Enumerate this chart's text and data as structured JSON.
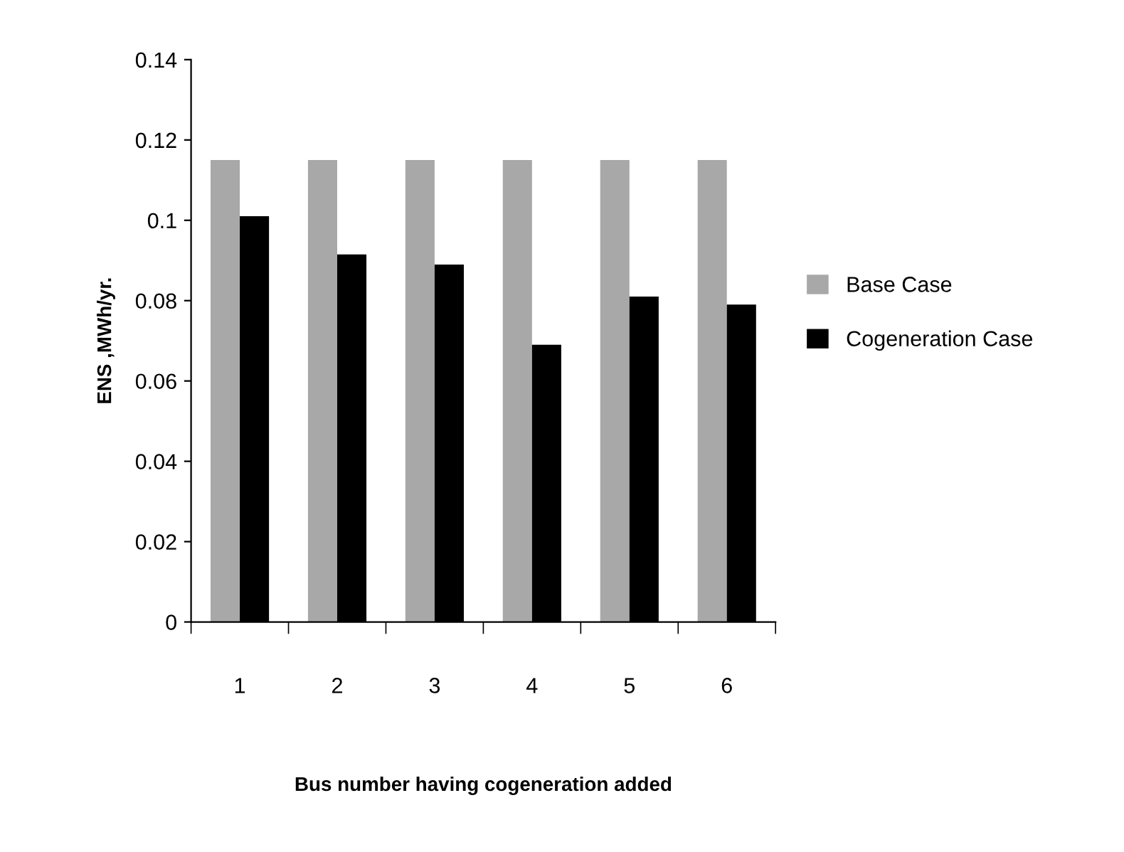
{
  "chart_data": {
    "type": "bar",
    "xlabel": "Bus number having cogeneration added",
    "ylabel": "ENS ,MWh/yr.",
    "categories": [
      "1",
      "2",
      "3",
      "4",
      "5",
      "6"
    ],
    "series": [
      {
        "name": "Base Case",
        "color": "#a8a8a8",
        "values": [
          0.115,
          0.115,
          0.115,
          0.115,
          0.115,
          0.115
        ]
      },
      {
        "name": "Cogeneration Case",
        "color": "#000000",
        "values": [
          0.101,
          0.0915,
          0.089,
          0.069,
          0.081,
          0.079
        ]
      }
    ],
    "ylim": [
      0,
      0.14
    ],
    "yticks": [
      0,
      0.02,
      0.04,
      0.06,
      0.08,
      0.1,
      0.12,
      0.14
    ],
    "grid": false,
    "legend": "right"
  }
}
